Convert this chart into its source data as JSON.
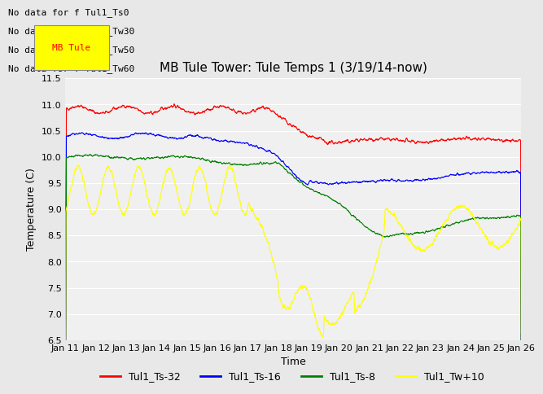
{
  "title": "MB Tule Tower: Tule Temps 1 (3/19/14-now)",
  "xlabel": "Time",
  "ylabel": "Temperature (C)",
  "ylim": [
    6.5,
    11.5
  ],
  "xlim": [
    0,
    15
  ],
  "xtick_labels": [
    "Jan 11",
    "Jan 12",
    "Jan 13",
    "Jan 14",
    "Jan 15",
    "Jan 16",
    "Jan 17",
    "Jan 18",
    "Jan 19",
    "Jan 20",
    "Jan 21",
    "Jan 22",
    "Jan 23",
    "Jan 24",
    "Jan 25",
    "Jan 26"
  ],
  "ytick_labels": [
    "6.5",
    "7.0",
    "7.5",
    "8.0",
    "8.5",
    "9.0",
    "9.5",
    "10.0",
    "10.5",
    "11.0",
    "11.5"
  ],
  "ytick_values": [
    6.5,
    7.0,
    7.5,
    8.0,
    8.5,
    9.0,
    9.5,
    10.0,
    10.5,
    11.0,
    11.5
  ],
  "legend_labels": [
    "Tul1_Ts-32",
    "Tul1_Ts-16",
    "Tul1_Ts-8",
    "Tul1_Tw+10"
  ],
  "line_colors": [
    "red",
    "blue",
    "green",
    "yellow"
  ],
  "no_data_texts": [
    "No data for f Tul1_Ts0",
    "No data for f Tul1_Tw30",
    "No data for f Tul1_Tw50",
    "No data for f Tul1_Tw60"
  ],
  "tooltip_text": "MB Tule",
  "bg_color": "#e8e8e8",
  "plot_bg_color": "#f0f0f0",
  "title_fontsize": 11,
  "axis_label_fontsize": 9,
  "tick_fontsize": 8,
  "legend_fontsize": 9,
  "no_data_fontsize": 8
}
